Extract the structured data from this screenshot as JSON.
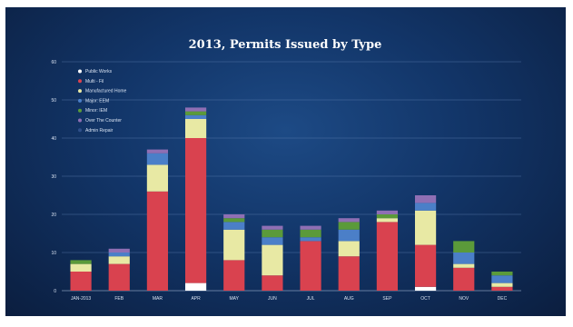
{
  "chart_data": {
    "type": "bar",
    "stacked": true,
    "title": "2013, Permits Issued by Type",
    "xlabel": "",
    "ylabel": "",
    "ylim": [
      0,
      60
    ],
    "yticks": [
      0,
      10,
      20,
      30,
      40,
      50,
      60
    ],
    "grid": true,
    "legend_position": "top-left",
    "categories": [
      "JAN-2013",
      "FEB",
      "MAR",
      "APR",
      "MAY",
      "JUN",
      "JUL",
      "AUG",
      "SEP",
      "OCT",
      "NOV",
      "DEC"
    ],
    "series": [
      {
        "name": "Public Works",
        "color": "#ffffff",
        "values": [
          0,
          0,
          0,
          2,
          0,
          0,
          0,
          0,
          0,
          1,
          0,
          0
        ]
      },
      {
        "name": "Multi - Fil",
        "color": "#d9424f",
        "values": [
          5,
          7,
          26,
          38,
          8,
          4,
          13,
          9,
          18,
          11,
          6,
          1
        ]
      },
      {
        "name": "Manufactured Home",
        "color": "#e8e9a4",
        "values": [
          2,
          2,
          7,
          5,
          8,
          8,
          0,
          4,
          1,
          9,
          1,
          1
        ]
      },
      {
        "name": "Major: EEM",
        "color": "#4b7fc8",
        "values": [
          0,
          1,
          3,
          1,
          2,
          2,
          1,
          3,
          0,
          2,
          3,
          2
        ]
      },
      {
        "name": "Minor: IEM",
        "color": "#5b9a3a",
        "values": [
          1,
          0,
          0,
          1,
          1,
          2,
          2,
          2,
          1,
          0,
          3,
          1
        ]
      },
      {
        "name": "Over The Counter",
        "color": "#8f6fb4",
        "values": [
          0,
          1,
          1,
          1,
          1,
          1,
          1,
          1,
          1,
          2,
          0,
          0
        ]
      },
      {
        "name": "Admin Repair",
        "color": "#2f4f8a",
        "values": [
          0,
          0,
          0,
          0,
          0,
          0,
          0,
          0,
          0,
          0,
          0,
          0
        ]
      }
    ]
  }
}
